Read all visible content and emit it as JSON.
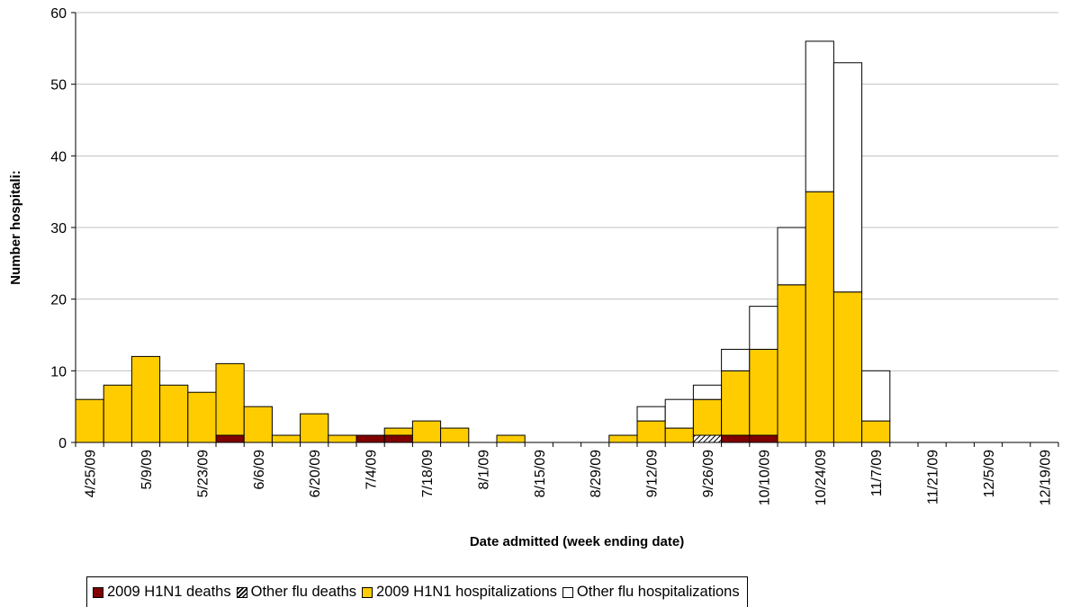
{
  "chart_data": {
    "type": "bar",
    "stacked": true,
    "xlabel": "Date admitted (week ending date)",
    "ylabel": "Number hospitali:",
    "ylim": [
      0,
      60
    ],
    "y_ticks": [
      0,
      10,
      20,
      30,
      40,
      50,
      60
    ],
    "grid": "horizontal",
    "legend_position": "bottom",
    "categories": [
      "4/25/09",
      "5/2/09",
      "5/9/09",
      "5/16/09",
      "5/23/09",
      "5/30/09",
      "6/6/09",
      "6/13/09",
      "6/20/09",
      "6/27/09",
      "7/4/09",
      "7/11/09",
      "7/18/09",
      "7/25/09",
      "8/1/09",
      "8/8/09",
      "8/15/09",
      "8/22/09",
      "8/29/09",
      "9/5/09",
      "9/12/09",
      "9/19/09",
      "9/26/09",
      "10/3/09",
      "10/10/09",
      "10/17/09",
      "10/24/09",
      "10/31/09",
      "11/7/09",
      "11/14/09",
      "11/21/09",
      "11/28/09",
      "12/5/09",
      "12/12/09",
      "12/19/09"
    ],
    "x_tick_labels": [
      "4/25/09",
      "5/9/09",
      "5/23/09",
      "6/6/09",
      "6/20/09",
      "7/4/09",
      "7/18/09",
      "8/1/09",
      "8/15/09",
      "8/29/09",
      "9/12/09",
      "9/26/09",
      "10/10/09",
      "10/24/09",
      "11/7/09",
      "11/21/09",
      "12/5/09",
      "12/19/09"
    ],
    "series": [
      {
        "name": "2009 H1N1 deaths",
        "color": "#800000",
        "pattern": "solid",
        "values": [
          0,
          0,
          0,
          0,
          0,
          1,
          0,
          0,
          0,
          0,
          1,
          1,
          0,
          0,
          0,
          0,
          0,
          0,
          0,
          0,
          0,
          0,
          0,
          1,
          1,
          0,
          0,
          0,
          0,
          0,
          0,
          0,
          0,
          0,
          0
        ]
      },
      {
        "name": "Other flu deaths",
        "color": "#ffffff",
        "pattern": "diagonal-hatch",
        "values": [
          0,
          0,
          0,
          0,
          0,
          0,
          0,
          0,
          0,
          0,
          0,
          0,
          0,
          0,
          0,
          0,
          0,
          0,
          0,
          0,
          0,
          0,
          1,
          0,
          0,
          0,
          0,
          0,
          0,
          0,
          0,
          0,
          0,
          0,
          0
        ]
      },
      {
        "name": "2009 H1N1 hospitalizations",
        "color": "#ffcc00",
        "pattern": "solid",
        "values": [
          6,
          8,
          12,
          8,
          7,
          10,
          5,
          1,
          4,
          1,
          0,
          1,
          3,
          2,
          0,
          1,
          0,
          0,
          0,
          1,
          3,
          2,
          5,
          9,
          12,
          22,
          35,
          21,
          3,
          0,
          0,
          0,
          0,
          0,
          0
        ]
      },
      {
        "name": "Other flu hospitalizations",
        "color": "#ffffff",
        "pattern": "solid",
        "values": [
          0,
          0,
          0,
          0,
          0,
          0,
          0,
          0,
          0,
          0,
          0,
          0,
          0,
          0,
          0,
          0,
          0,
          0,
          0,
          0,
          2,
          4,
          2,
          3,
          6,
          8,
          21,
          32,
          7,
          0,
          0,
          0,
          0,
          0,
          0
        ]
      }
    ]
  }
}
